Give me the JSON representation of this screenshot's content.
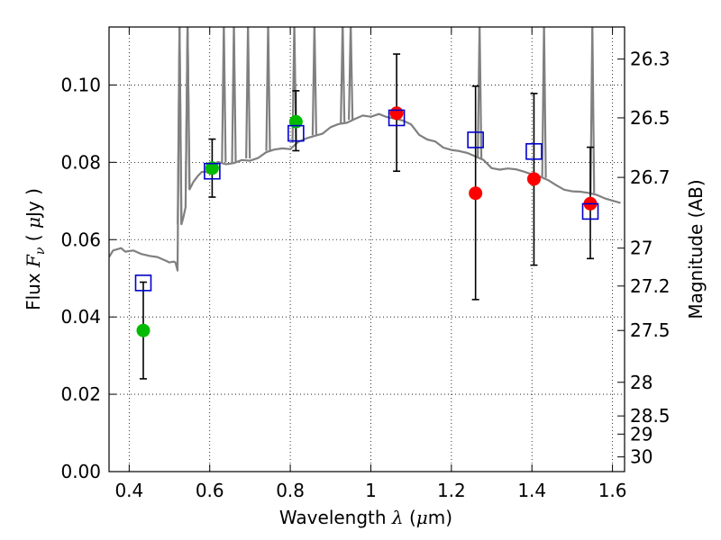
{
  "chart_data": {
    "type": "scatter",
    "xlabel": "Wavelength  λ (μm)",
    "ylabel": "Flux  Fν  ( μJy )",
    "ylabel_right": "Magnitude (AB)",
    "xlim": [
      0.35,
      1.63
    ],
    "ylim": [
      0.0,
      0.115
    ],
    "grid": true,
    "grid_style": "dotted",
    "x_ticks": [
      "0.4",
      "0.6",
      "0.8",
      "1",
      "1.2",
      "1.4",
      "1.6"
    ],
    "x_tick_values": [
      0.4,
      0.6,
      0.8,
      1.0,
      1.2,
      1.4,
      1.6
    ],
    "y_ticks": [
      "0.00",
      "0.02",
      "0.04",
      "0.06",
      "0.08",
      "0.10"
    ],
    "y_tick_values": [
      0.0,
      0.02,
      0.04,
      0.06,
      0.08,
      0.1
    ],
    "right_ticks": [
      {
        "label": "26.3",
        "flux": 0.1067
      },
      {
        "label": "26.5",
        "flux": 0.0915
      },
      {
        "label": "26.7",
        "flux": 0.0761
      },
      {
        "label": "27",
        "flux": 0.0578
      },
      {
        "label": "27.2",
        "flux": 0.048
      },
      {
        "label": "27.5",
        "flux": 0.0365
      },
      {
        "label": "28",
        "flux": 0.0231
      },
      {
        "label": "28.5",
        "flux": 0.0144
      },
      {
        "label": "29",
        "flux": 0.0097
      },
      {
        "label": "30",
        "flux": 0.0038
      }
    ],
    "series": [
      {
        "kind": "line",
        "color": "#808080",
        "x": [
          0.35,
          0.36,
          0.38,
          0.39,
          0.41,
          0.43,
          0.45,
          0.47,
          0.49,
          0.5,
          0.51,
          0.515,
          0.52,
          0.525,
          0.53,
          0.535,
          0.54,
          0.545,
          0.55,
          0.56,
          0.57,
          0.58,
          0.59,
          0.595,
          0.6,
          0.61,
          0.62,
          0.64,
          0.66,
          0.68,
          0.7,
          0.72,
          0.74,
          0.76,
          0.78,
          0.8,
          0.82,
          0.84,
          0.86,
          0.88,
          0.9,
          0.92,
          0.94,
          0.96,
          0.98,
          1.0,
          1.02,
          1.04,
          1.06,
          1.08,
          1.1,
          1.12,
          1.14,
          1.16,
          1.18,
          1.2,
          1.22,
          1.24,
          1.26,
          1.28,
          1.3,
          1.32,
          1.34,
          1.36,
          1.38,
          1.4,
          1.42,
          1.44,
          1.46,
          1.48,
          1.5,
          1.52,
          1.54,
          1.56,
          1.58,
          1.6,
          1.62
        ],
        "y": [
          0.0555,
          0.0572,
          0.0578,
          0.0569,
          0.0572,
          0.0563,
          0.0558,
          0.0555,
          0.0546,
          0.0541,
          0.0543,
          0.0541,
          0.052,
          0.115,
          0.064,
          0.066,
          0.0684,
          0.115,
          0.073,
          0.075,
          0.0764,
          0.0775,
          0.0776,
          0.0773,
          0.0772,
          0.0792,
          0.0801,
          0.0795,
          0.0798,
          0.0806,
          0.0804,
          0.0811,
          0.0826,
          0.0833,
          0.0836,
          0.0834,
          0.0853,
          0.0862,
          0.0868,
          0.0874,
          0.0891,
          0.0899,
          0.0902,
          0.0912,
          0.0921,
          0.0918,
          0.0925,
          0.0917,
          0.0913,
          0.0908,
          0.0898,
          0.0871,
          0.0859,
          0.0854,
          0.0838,
          0.0832,
          0.0829,
          0.0824,
          0.0815,
          0.0806,
          0.0785,
          0.0781,
          0.0784,
          0.0782,
          0.0776,
          0.0769,
          0.0763,
          0.0754,
          0.0741,
          0.0729,
          0.0725,
          0.0724,
          0.0721,
          0.0716,
          0.0707,
          0.0701,
          0.0695
        ]
      },
      {
        "kind": "points",
        "marker": "filled-circle",
        "color": "#00bb00",
        "x": [
          0.435,
          0.606,
          0.814
        ],
        "y": [
          0.0365,
          0.0785,
          0.0905
        ],
        "yerr_low": [
          0.0125,
          0.0075,
          0.0075
        ],
        "yerr_high": [
          0.0125,
          0.0075,
          0.008
        ]
      },
      {
        "kind": "points",
        "marker": "filled-circle",
        "color": "#ff0000",
        "x": [
          1.064,
          1.26,
          1.405,
          1.545
        ],
        "y": [
          0.0927,
          0.072,
          0.0757,
          0.0693
        ],
        "yerr_low": [
          0.015,
          0.0275,
          0.0223,
          0.0142
        ],
        "yerr_high": [
          0.0153,
          0.0277,
          0.0221,
          0.0146
        ]
      },
      {
        "kind": "points",
        "marker": "open-square",
        "color": "#0000cc",
        "x": [
          0.435,
          0.606,
          0.814,
          1.064,
          1.26,
          1.405,
          1.545
        ],
        "y": [
          0.0488,
          0.0777,
          0.0875,
          0.0915,
          0.0858,
          0.0828,
          0.0673
        ]
      }
    ],
    "emission_spikes": [
      {
        "x": 0.525,
        "base": 0.064
      },
      {
        "x": 0.545,
        "base": 0.073
      },
      {
        "x": 0.635,
        "base": 0.08
      },
      {
        "x": 0.66,
        "base": 0.08
      },
      {
        "x": 0.695,
        "base": 0.081
      },
      {
        "x": 0.745,
        "base": 0.083
      },
      {
        "x": 0.81,
        "base": 0.085
      },
      {
        "x": 0.86,
        "base": 0.087
      },
      {
        "x": 0.93,
        "base": 0.09
      },
      {
        "x": 0.95,
        "base": 0.091
      },
      {
        "x": 1.27,
        "base": 0.081
      },
      {
        "x": 1.43,
        "base": 0.076
      },
      {
        "x": 1.55,
        "base": 0.072
      }
    ]
  }
}
